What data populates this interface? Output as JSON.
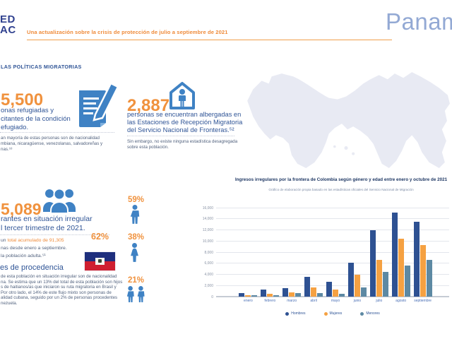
{
  "colors": {
    "accent_orange": "#f0923e",
    "brand_blue": "#2f5496",
    "icon_blue": "#3f82c4",
    "map_gray": "#e8eaf3",
    "bar_men": "#2e5192",
    "bar_women": "#f5a142",
    "bar_minors": "#5d89a3",
    "haiti_blue": "#1e2f7d",
    "haiti_red": "#cf1f30"
  },
  "header": {
    "logo_line1": "ED",
    "logo_line2": "AC",
    "tagline": "Una actualización sobre la crisis de protección de julio a septiembre de 2021",
    "country": "Panamá"
  },
  "section_label": "LAS POLÍTICAS MIGRATORIAS",
  "stat_refugees": {
    "value": "5,500",
    "desc_lines": [
      "onas refugiadas y",
      "citantes de la condición",
      "efugiado."
    ],
    "note_lines": [
      "an mayoría de estas personas son de nacionalidad",
      "mbiana, nicaragüense, venezolanas, salvadoreñas y",
      "nas.⁵³"
    ]
  },
  "stat_sheltered": {
    "value": "2,887",
    "desc_lines": [
      "personas se encuentran albergadas en",
      "las Estaciones de Recepción Migratoria",
      "del Servicio Nacional de Fronteras.⁵²"
    ],
    "note_lines": [
      "Sin embargo, no existe ninguna estadística desagregada",
      "sobre esta población."
    ]
  },
  "stat_irregular": {
    "value": "5,089",
    "desc_lines": [
      "rantes en situación irregular",
      "l tercer trimestre de 2021."
    ],
    "note_prefix": "un ",
    "note_highlight": "total acumulado de 91,305",
    "note_lines": [
      "nas desde enero a septiembre.",
      "la población adulta.⁵¹"
    ]
  },
  "demographics": {
    "haiti_pct": "62%",
    "men_pct": "59%",
    "women_pct": "38%",
    "children_pct": "21%"
  },
  "origin": {
    "heading": "es de procedencia",
    "body_lines": [
      "de esta población en situación irregular son de nacionalidad",
      "na. Se estima que un 13% del total de esta población son hijos",
      "s de haitianos/as que iniciaron su ruta migratoria en Brasil y",
      "Por otro lado, el 14% de este flujo mixto son personas de",
      "alidad cubana, seguido por un 2% de personas procedentes",
      "nezuela."
    ]
  },
  "chart_data": {
    "type": "bar",
    "title": "Ingresos irregulares por la frontera de Colombia según género y edad entre enero y octubre de 2021",
    "subtitle": "Gráfico de elaboración propia basado en las estadísticas oficiales del Servicio Nacional de Migración",
    "categories": [
      "enero",
      "febrero",
      "marzo",
      "abril",
      "mayo",
      "junio",
      "julio",
      "agosto",
      "septiembre"
    ],
    "series": [
      {
        "name": "Hombres",
        "color": "#2e5192",
        "values": [
          600,
          1300,
          1500,
          3600,
          2700,
          6100,
          12000,
          15100,
          13500
        ]
      },
      {
        "name": "Mujeres",
        "color": "#f5a142",
        "values": [
          300,
          450,
          800,
          1700,
          1300,
          3900,
          6600,
          10400,
          9300
        ]
      },
      {
        "name": "Menores",
        "color": "#5d89a3",
        "values": [
          200,
          250,
          600,
          600,
          450,
          1600,
          4400,
          5600,
          6600
        ]
      }
    ],
    "ylim": [
      0,
      16000
    ],
    "ytick_step": 2000,
    "grid": true,
    "legend_position": "bottom",
    "xlabel": "",
    "ylabel": ""
  }
}
